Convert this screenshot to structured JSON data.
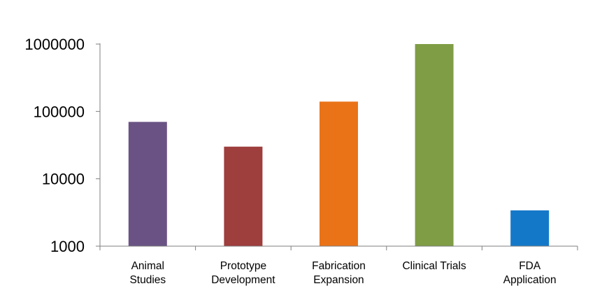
{
  "chart_data": {
    "type": "bar",
    "title": "",
    "xlabel": "",
    "ylabel": "",
    "yscale": "log",
    "ylim": [
      1000,
      1000000
    ],
    "yticks": [
      1000,
      10000,
      100000,
      1000000
    ],
    "ytick_labels": [
      "1000",
      "10000",
      "100000",
      "1000000"
    ],
    "grid": false,
    "legend": "none",
    "categories": [
      [
        "Animal",
        "Studies"
      ],
      [
        "Prototype",
        "Development"
      ],
      [
        "Fabrication",
        "Expansion"
      ],
      [
        "Clinical Trials"
      ],
      [
        "FDA",
        "Application"
      ]
    ],
    "values": [
      70000,
      30000,
      140000,
      1000000,
      3400
    ],
    "colors": [
      "#6A5384",
      "#9E3E3D",
      "#EA7318",
      "#7F9D45",
      "#1478C9"
    ],
    "axis_color": "#7f7f7f"
  }
}
